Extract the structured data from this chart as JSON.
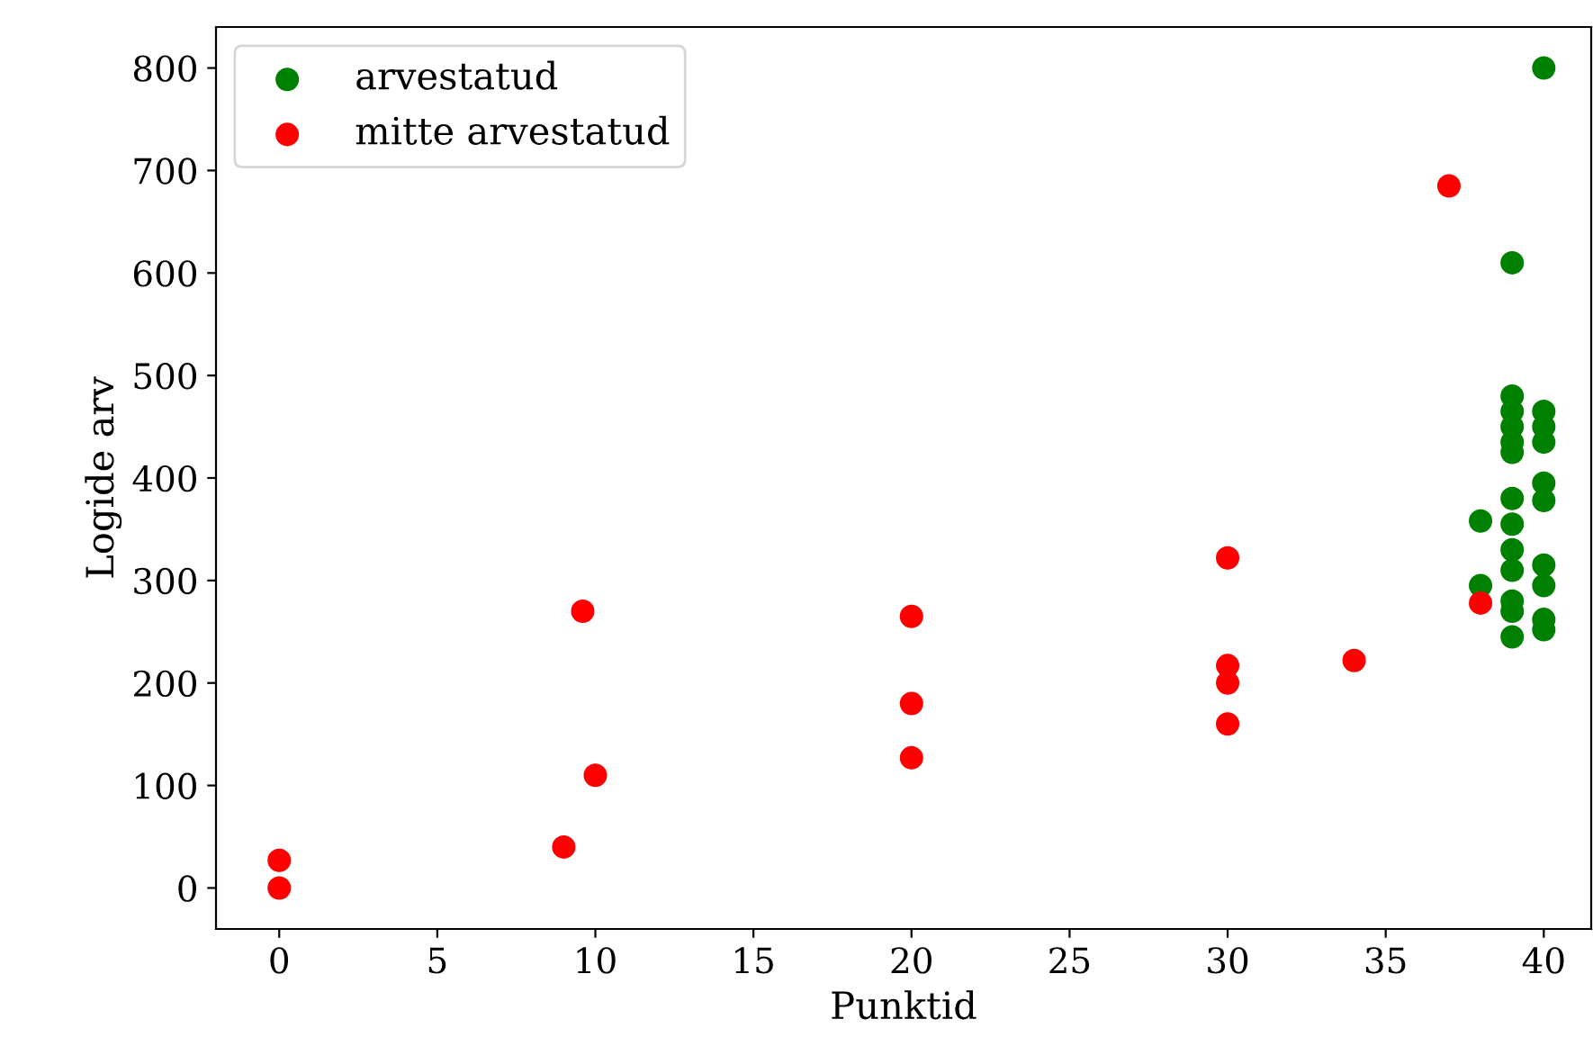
{
  "chart_data": {
    "type": "scatter",
    "xlabel": "Punktid",
    "ylabel": "Logide arv",
    "xlim": [
      -2,
      41.5
    ],
    "ylim": [
      -40,
      840
    ],
    "xticks": [
      0,
      5,
      10,
      15,
      20,
      25,
      30,
      35,
      40
    ],
    "yticks": [
      0,
      100,
      200,
      300,
      400,
      500,
      600,
      700,
      800
    ],
    "grid": false,
    "legend": "top left",
    "marker": "circle",
    "series": [
      {
        "name": "arvestatud",
        "color": "#008000",
        "x": [
          38,
          38,
          39,
          39,
          39,
          39,
          39,
          39,
          39,
          39,
          39,
          39,
          39,
          39,
          39,
          40,
          40,
          40,
          40,
          40,
          40,
          40,
          40,
          40,
          40
        ],
        "values": [
          358,
          295,
          610,
          480,
          465,
          450,
          435,
          425,
          380,
          355,
          330,
          310,
          280,
          270,
          245,
          800,
          465,
          450,
          435,
          395,
          378,
          315,
          295,
          262,
          252
        ]
      },
      {
        "name": "mitte arvestatud",
        "color": "#ff0000",
        "x": [
          0,
          0,
          9,
          9.6,
          10,
          20,
          20,
          20,
          30,
          30,
          30,
          30,
          34,
          37,
          38
        ],
        "values": [
          0,
          27,
          40,
          270,
          110,
          265,
          180,
          127,
          322,
          217,
          200,
          160,
          222,
          685,
          278
        ]
      }
    ]
  }
}
